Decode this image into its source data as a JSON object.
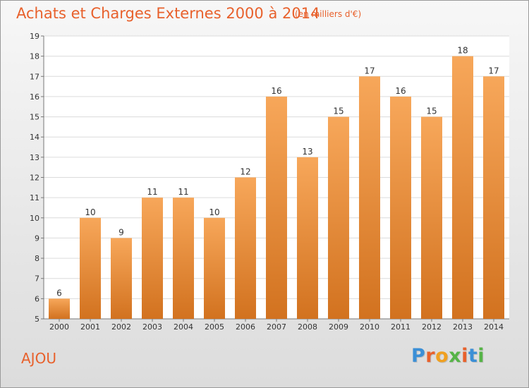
{
  "title": "Achats et Charges Externes 2000 à 2014",
  "subtitle": "(en milliers d'€)",
  "commune": "AJOU",
  "logo": {
    "text": "Proxiti",
    "letter_colors": [
      "#3b8fd6",
      "#e8612c",
      "#f0a020",
      "#56b447",
      "#e8612c",
      "#3b8fd6",
      "#56b447"
    ]
  },
  "colors": {
    "bar_top": "#f7a75a",
    "bar_bottom": "#d2721f",
    "accent": "#e8612c",
    "grid": "#dcdcdc"
  },
  "chart_data": {
    "type": "bar",
    "title": "Achats et Charges Externes 2000 à 2014",
    "xlabel": "",
    "ylabel": "",
    "categories": [
      "2000",
      "2001",
      "2002",
      "2003",
      "2004",
      "2005",
      "2006",
      "2007",
      "2008",
      "2009",
      "2010",
      "2011",
      "2012",
      "2013",
      "2014"
    ],
    "values": [
      6,
      10,
      9,
      11,
      11,
      10,
      12,
      16,
      13,
      15,
      17,
      16,
      15,
      18,
      17
    ],
    "ylim": [
      5,
      19
    ],
    "yticks": [
      "5",
      "6",
      "7",
      "8",
      "9",
      "10",
      "11",
      "12",
      "13",
      "14",
      "15",
      "16",
      "17",
      "18",
      "19"
    ],
    "grid": true
  }
}
